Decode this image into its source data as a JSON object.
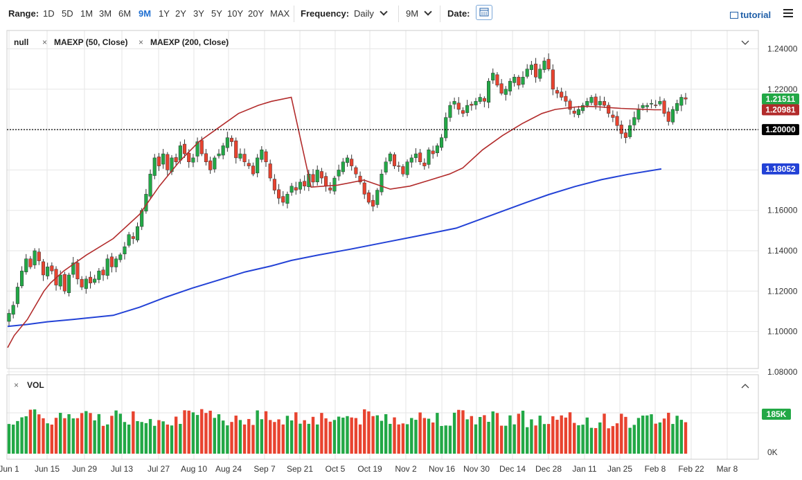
{
  "toolbar": {
    "range_label": "Range:",
    "ranges": [
      "1D",
      "5D",
      "1M",
      "3M",
      "6M",
      "9M",
      "1Y",
      "2Y",
      "3Y",
      "5Y",
      "10Y",
      "20Y",
      "MAX"
    ],
    "active_range": "9M",
    "frequency_label": "Frequency:",
    "frequency_value": "Daily",
    "period_value": "9M",
    "date_label": "Date:",
    "tutorial_label": "tutorial"
  },
  "legend": {
    "symbol": "null",
    "ma1": "MAEXP (50, Close)",
    "ma2": "MAEXP (200, Close)",
    "vol_label": "VOL"
  },
  "colors": {
    "up": "#22a846",
    "down": "#e8432f",
    "ma50": "#b22b2b",
    "ma200": "#2342d6",
    "grid": "#e6e6e6"
  },
  "chart_data": {
    "type": "candlestick",
    "x_ticks": [
      "Jun 1",
      "Jun 15",
      "Jun 29",
      "Jul 13",
      "Jul 27",
      "Aug 10",
      "Aug 24",
      "Sep 7",
      "Sep 21",
      "Oct 5",
      "Oct 19",
      "Nov 2",
      "Nov 16",
      "Nov 30",
      "Dec 14",
      "Dec 28",
      "Jan 11",
      "Jan 25",
      "Feb 8",
      "Feb 22",
      "Mar 8"
    ],
    "y_ticks": [
      "1.24000",
      "1.22000",
      "1.20000",
      "1.18000",
      "1.16000",
      "1.14000",
      "1.12000",
      "1.10000",
      "1.08000"
    ],
    "ylim": [
      1.08,
      1.245
    ],
    "price_labels": [
      {
        "text": "1.21511",
        "value": 1.21511,
        "color": "#22a846"
      },
      {
        "text": "1.20981",
        "value": 1.20981,
        "color": "#b22b2b"
      },
      {
        "text": "1.20000",
        "value": 1.2,
        "color": "#000000"
      },
      {
        "text": "1.18052",
        "value": 1.18052,
        "color": "#2342d6"
      }
    ],
    "reference_line": 1.2,
    "closes": [
      1.109,
      1.113,
      1.122,
      1.13,
      1.136,
      1.132,
      1.14,
      1.135,
      1.128,
      1.132,
      1.13,
      1.123,
      1.128,
      1.12,
      1.128,
      1.134,
      1.126,
      1.122,
      1.126,
      1.124,
      1.126,
      1.13,
      1.128,
      1.136,
      1.132,
      1.136,
      1.138,
      1.142,
      1.148,
      1.146,
      1.152,
      1.16,
      1.168,
      1.178,
      1.186,
      1.182,
      1.188,
      1.18,
      1.186,
      1.184,
      1.192,
      1.188,
      1.184,
      1.186,
      1.194,
      1.188,
      1.184,
      1.18,
      1.186,
      1.188,
      1.192,
      1.196,
      1.194,
      1.186,
      1.188,
      1.184,
      1.182,
      1.178,
      1.186,
      1.19,
      1.184,
      1.176,
      1.17,
      1.166,
      1.164,
      1.168,
      1.172,
      1.17,
      1.174,
      1.172,
      1.178,
      1.174,
      1.18,
      1.176,
      1.172,
      1.17,
      1.176,
      1.18,
      1.184,
      1.186,
      1.182,
      1.178,
      1.174,
      1.168,
      1.164,
      1.162,
      1.17,
      1.178,
      1.184,
      1.188,
      1.182,
      1.182,
      1.178,
      1.184,
      1.186,
      1.188,
      1.184,
      1.182,
      1.19,
      1.188,
      1.192,
      1.196,
      1.206,
      1.212,
      1.214,
      1.21,
      1.208,
      1.212,
      1.212,
      1.214,
      1.216,
      1.214,
      1.224,
      1.228,
      1.222,
      1.218,
      1.22,
      1.224,
      1.226,
      1.222,
      1.226,
      1.23,
      1.232,
      1.226,
      1.23,
      1.234,
      1.23,
      1.22,
      1.218,
      1.216,
      1.214,
      1.21,
      1.208,
      1.21,
      1.212,
      1.214,
      1.216,
      1.212,
      1.214,
      1.212,
      1.208,
      1.206,
      1.202,
      1.198,
      1.196,
      1.202,
      1.206,
      1.21,
      1.212,
      1.212,
      1.213,
      1.212,
      1.214,
      1.208,
      1.204,
      1.21,
      1.213,
      1.216,
      1.2151
    ],
    "ma50": [
      [
        0,
        1.092
      ],
      [
        10,
        1.098
      ],
      [
        30,
        1.106
      ],
      [
        55,
        1.12
      ],
      [
        65,
        1.124
      ],
      [
        85,
        1.13
      ],
      [
        120,
        1.138
      ],
      [
        160,
        1.146
      ],
      [
        200,
        1.158
      ],
      [
        230,
        1.172
      ],
      [
        260,
        1.184
      ],
      [
        290,
        1.194
      ],
      [
        320,
        1.201
      ],
      [
        350,
        1.208
      ],
      [
        380,
        1.212
      ],
      [
        400,
        1.214
      ],
      [
        430,
        1.216
      ],
      [
        460,
        1.1715
      ],
      [
        500,
        1.1725
      ],
      [
        540,
        1.175
      ],
      [
        580,
        1.1705
      ],
      [
        610,
        1.172
      ],
      [
        640,
        1.175
      ],
      [
        670,
        1.178
      ],
      [
        690,
        1.181
      ],
      [
        720,
        1.19
      ],
      [
        750,
        1.197
      ],
      [
        780,
        1.203
      ],
      [
        810,
        1.208
      ],
      [
        830,
        1.21
      ],
      [
        860,
        1.2112
      ],
      [
        880,
        1.2115
      ],
      [
        900,
        1.2112
      ],
      [
        930,
        1.2105
      ],
      [
        960,
        1.2101
      ],
      [
        980,
        1.2098
      ],
      [
        991,
        1.20981
      ]
    ],
    "ma200": [
      [
        0,
        1.1025
      ],
      [
        30,
        1.1035
      ],
      [
        60,
        1.1048
      ],
      [
        100,
        1.106
      ],
      [
        160,
        1.108
      ],
      [
        200,
        1.112
      ],
      [
        240,
        1.117
      ],
      [
        280,
        1.1215
      ],
      [
        320,
        1.1255
      ],
      [
        360,
        1.1295
      ],
      [
        400,
        1.1325
      ],
      [
        430,
        1.1352
      ],
      [
        470,
        1.1378
      ],
      [
        520,
        1.1408
      ],
      [
        570,
        1.144
      ],
      [
        620,
        1.1472
      ],
      [
        680,
        1.1512
      ],
      [
        730,
        1.1572
      ],
      [
        780,
        1.1632
      ],
      [
        820,
        1.1678
      ],
      [
        860,
        1.1718
      ],
      [
        900,
        1.1752
      ],
      [
        940,
        1.1778
      ],
      [
        991,
        1.18052
      ]
    ],
    "volume": {
      "label": "185K",
      "zero_label": "0K",
      "current": 185
    }
  }
}
